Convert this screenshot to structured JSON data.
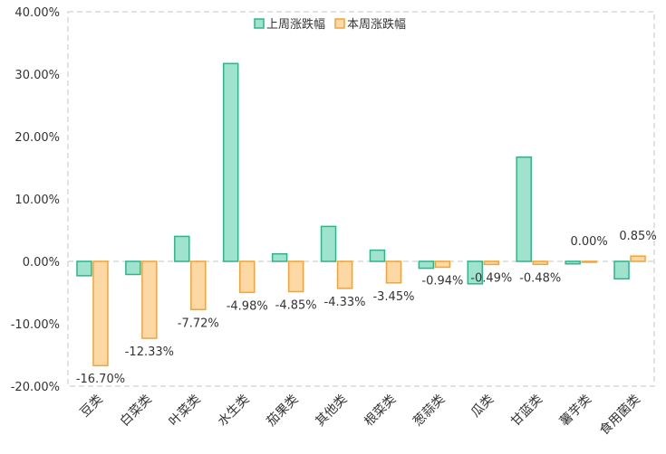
{
  "colors": {
    "series1_fill": "#9fe3cf",
    "series1_stroke": "#2db58a",
    "series2_fill": "#fcd9a4",
    "series2_stroke": "#f2a43a",
    "grid": "#d9d9d9",
    "text": "#333333"
  },
  "chart_data": {
    "type": "bar",
    "title": "",
    "xlabel": "",
    "ylabel": "",
    "ylim": [
      -20,
      40
    ],
    "yticks": [
      -20,
      -10,
      0,
      10,
      20,
      30,
      40
    ],
    "ytick_labels": [
      "-20.00%",
      "-10.00%",
      "0.00%",
      "10.00%",
      "20.00%",
      "30.00%",
      "40.00%"
    ],
    "grid": "dashed border and zero line",
    "legend_position": "top-center",
    "categories": [
      "豆类",
      "白菜类",
      "叶菜类",
      "水生类",
      "茄果类",
      "其他类",
      "根菜类",
      "葱蒜类",
      "瓜类",
      "甘蓝类",
      "薯芋类",
      "食用菌类"
    ],
    "series": [
      {
        "name": "上周涨跌幅",
        "values": [
          -2.3,
          -2.1,
          4.0,
          31.7,
          1.2,
          5.6,
          1.8,
          -1.1,
          -3.6,
          16.7,
          -0.4,
          -2.8
        ],
        "labels": [
          "",
          "",
          "",
          "",
          "",
          "",
          "",
          "",
          "",
          "",
          "",
          ""
        ]
      },
      {
        "name": "本周涨跌幅",
        "values": [
          -16.7,
          -12.33,
          -7.72,
          -4.98,
          -4.85,
          -4.33,
          -3.45,
          -0.94,
          -0.49,
          -0.48,
          0.0,
          0.85
        ],
        "labels": [
          "-16.70%",
          "-12.33%",
          "-7.72%",
          "-4.98%",
          "-4.85%",
          "-4.33%",
          "-3.45%",
          "-0.94%",
          "-0.49%",
          "-0.48%",
          "0.00%",
          "0.85%"
        ]
      }
    ]
  }
}
